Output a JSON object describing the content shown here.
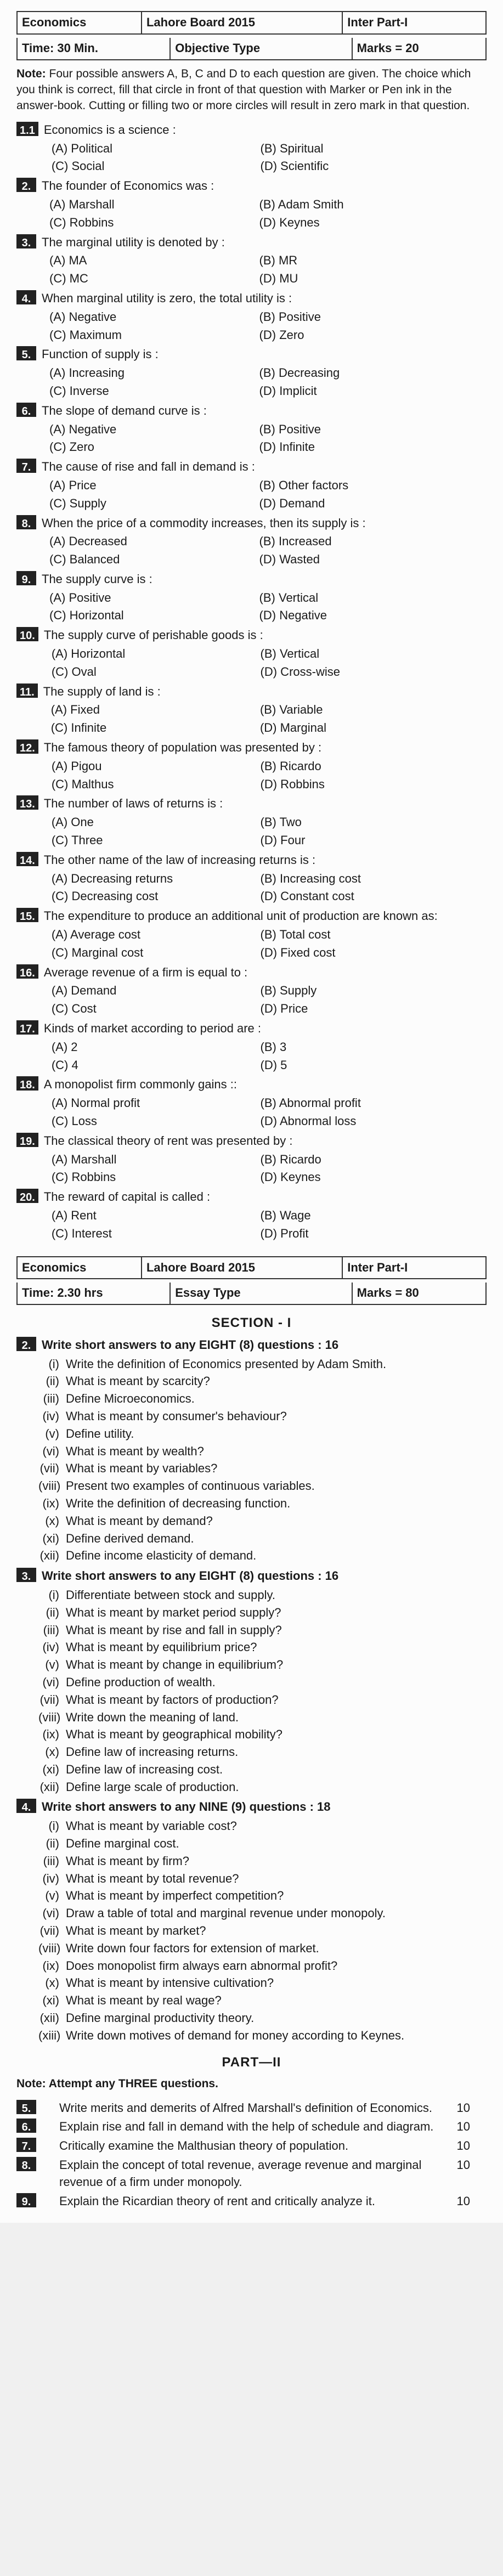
{
  "header1": {
    "subject": "Economics",
    "board": "Lahore Board 2015",
    "part": "Inter Part-I",
    "time": "Time: 30 Min.",
    "type": "Objective Type",
    "marks": "Marks = 20"
  },
  "note1": "Four possible answers A, B, C and D to each question are given. The choice which you think is correct, fill that circle in front of that question with Marker or Pen ink in the answer-book. Cutting or filling two or more circles will result in zero mark in that question.",
  "mcq": [
    {
      "n": "1.1",
      "s": "Economics is a science :",
      "o": [
        "(A) Political",
        "(B) Spiritual",
        "(C) Social",
        "(D) Scientific"
      ]
    },
    {
      "n": "2.",
      "s": "The founder of Economics was :",
      "o": [
        "(A) Marshall",
        "(B) Adam Smith",
        "(C) Robbins",
        "(D) Keynes"
      ]
    },
    {
      "n": "3.",
      "s": "The marginal utility is denoted by :",
      "o": [
        "(A) MA",
        "(B) MR",
        "(C) MC",
        "(D) MU"
      ]
    },
    {
      "n": "4.",
      "s": "When marginal utility is zero, the total utility is :",
      "o": [
        "(A) Negative",
        "(B) Positive",
        "(C) Maximum",
        "(D) Zero"
      ]
    },
    {
      "n": "5.",
      "s": "Function of supply is :",
      "o": [
        "(A) Increasing",
        "(B) Decreasing",
        "(C) Inverse",
        "(D) Implicit"
      ]
    },
    {
      "n": "6.",
      "s": "The slope of demand curve is :",
      "o": [
        "(A) Negative",
        "(B) Positive",
        "(C) Zero",
        "(D) Infinite"
      ]
    },
    {
      "n": "7.",
      "s": "The cause of rise and fall in demand is :",
      "o": [
        "(A) Price",
        "(B) Other factors",
        "(C) Supply",
        "(D) Demand"
      ]
    },
    {
      "n": "8.",
      "s": "When the price of a commodity increases, then its supply is :",
      "o": [
        "(A) Decreased",
        "(B) Increased",
        "(C) Balanced",
        "(D) Wasted"
      ]
    },
    {
      "n": "9.",
      "s": "The supply curve is :",
      "o": [
        "(A) Positive",
        "(B) Vertical",
        "(C) Horizontal",
        "(D) Negative"
      ]
    },
    {
      "n": "10.",
      "s": "The supply curve of perishable goods is :",
      "o": [
        "(A) Horizontal",
        "(B) Vertical",
        "(C) Oval",
        "(D) Cross-wise"
      ]
    },
    {
      "n": "11.",
      "s": "The supply of land is :",
      "o": [
        "(A) Fixed",
        "(B) Variable",
        "(C) Infinite",
        "(D) Marginal"
      ]
    },
    {
      "n": "12.",
      "s": "The famous theory of population was presented by :",
      "o": [
        "(A) Pigou",
        "(B) Ricardo",
        "(C) Malthus",
        "(D) Robbins"
      ]
    },
    {
      "n": "13.",
      "s": "The number of laws of returns is :",
      "o": [
        "(A) One",
        "(B) Two",
        "(C) Three",
        "(D) Four"
      ]
    },
    {
      "n": "14.",
      "s": "The other name of the law of increasing returns is :",
      "o": [
        "(A) Decreasing returns",
        "(B) Increasing cost",
        "(C) Decreasing cost",
        "(D) Constant cost"
      ]
    },
    {
      "n": "15.",
      "s": "The expenditure to produce an additional unit of production are known as:",
      "o": [
        "(A) Average cost",
        "(B) Total cost",
        "(C) Marginal cost",
        "(D) Fixed cost"
      ]
    },
    {
      "n": "16.",
      "s": "Average revenue of a firm is equal to :",
      "o": [
        "(A) Demand",
        "(B) Supply",
        "(C) Cost",
        "(D) Price"
      ]
    },
    {
      "n": "17.",
      "s": "Kinds of market according to period are :",
      "o": [
        "(A) 2",
        "(B) 3",
        "(C) 4",
        "(D) 5"
      ]
    },
    {
      "n": "18.",
      "s": "A monopolist firm commonly gains ::",
      "o": [
        "(A) Normal profit",
        "(B) Abnormal profit",
        "(C) Loss",
        "(D) Abnormal loss"
      ]
    },
    {
      "n": "19.",
      "s": "The classical theory of rent was presented by :",
      "o": [
        "(A) Marshall",
        "(B) Ricardo",
        "(C) Robbins",
        "(D) Keynes"
      ]
    },
    {
      "n": "20.",
      "s": "The reward of capital is called :",
      "o": [
        "(A) Rent",
        "(B) Wage",
        "(C) Interest",
        "(D) Profit"
      ]
    }
  ],
  "header2": {
    "subject": "Economics",
    "board": "Lahore Board 2015",
    "part": "Inter Part-I",
    "time": "Time: 2.30 hrs",
    "type": "Essay Type",
    "marks": "Marks = 80"
  },
  "section1_title": "SECTION - I",
  "essay": [
    {
      "n": "2.",
      "head": "Write short answers to any EIGHT (8) questions : 16",
      "subs": [
        {
          "r": "(i)",
          "t": "Write the definition of Economics presented by Adam Smith."
        },
        {
          "r": "(ii)",
          "t": "What is meant by scarcity?"
        },
        {
          "r": "(iii)",
          "t": "Define Microeconomics."
        },
        {
          "r": "(iv)",
          "t": "What is meant by consumer's behaviour?"
        },
        {
          "r": "(v)",
          "t": "Define utility."
        },
        {
          "r": "(vi)",
          "t": "What is meant by wealth?"
        },
        {
          "r": "(vii)",
          "t": "What is meant by variables?"
        },
        {
          "r": "(viii)",
          "t": "Present two examples of continuous variables."
        },
        {
          "r": "(ix)",
          "t": "Write the definition of decreasing function."
        },
        {
          "r": "(x)",
          "t": "What is meant by demand?"
        },
        {
          "r": "(xi)",
          "t": "Define derived demand."
        },
        {
          "r": "(xii)",
          "t": "Define income elasticity of demand."
        }
      ]
    },
    {
      "n": "3.",
      "head": "Write short answers to any EIGHT (8) questions : 16",
      "subs": [
        {
          "r": "(i)",
          "t": "Differentiate between stock and supply."
        },
        {
          "r": "(ii)",
          "t": "What is meant by market period supply?"
        },
        {
          "r": "(iii)",
          "t": "What is meant by rise and fall in supply?"
        },
        {
          "r": "(iv)",
          "t": "What is meant by equilibrium price?"
        },
        {
          "r": "(v)",
          "t": "What is meant by change in equilibrium?"
        },
        {
          "r": "(vi)",
          "t": "Define production of wealth."
        },
        {
          "r": "(vii)",
          "t": "What is meant by factors of production?"
        },
        {
          "r": "(viii)",
          "t": "Write down the meaning of land."
        },
        {
          "r": "(ix)",
          "t": "What is meant by geographical mobility?"
        },
        {
          "r": "(x)",
          "t": "Define law of increasing returns."
        },
        {
          "r": "(xi)",
          "t": "Define law of increasing cost."
        },
        {
          "r": "(xii)",
          "t": "Define large scale of production."
        }
      ]
    },
    {
      "n": "4.",
      "head": "Write short answers to any NINE (9) questions : 18",
      "subs": [
        {
          "r": "(i)",
          "t": "What is meant by variable cost?"
        },
        {
          "r": "(ii)",
          "t": "Define marginal cost."
        },
        {
          "r": "(iii)",
          "t": "What is meant by firm?"
        },
        {
          "r": "(iv)",
          "t": "What is meant by total revenue?"
        },
        {
          "r": "(v)",
          "t": "What is meant by imperfect competition?"
        },
        {
          "r": "(vi)",
          "t": "Draw a table of total and marginal revenue under monopoly."
        },
        {
          "r": "(vii)",
          "t": "What is meant by market?"
        },
        {
          "r": "(viii)",
          "t": "Write down four factors for extension of market."
        },
        {
          "r": "(ix)",
          "t": "Does monopolist firm always earn abnormal profit?"
        },
        {
          "r": "(x)",
          "t": "What is meant by intensive cultivation?"
        },
        {
          "r": "(xi)",
          "t": "What is meant by real wage?"
        },
        {
          "r": "(xii)",
          "t": "Define marginal productivity theory."
        },
        {
          "r": "(xiii)",
          "t": "Write down motives of demand for money according to Keynes."
        }
      ]
    }
  ],
  "part2_title": "PART—II",
  "part2_note": "Note: Attempt any THREE questions.",
  "part2": [
    {
      "n": "5.",
      "t": "Write merits and demerits of Alfred Marshall's definition of Economics.",
      "m": "10"
    },
    {
      "n": "6.",
      "t": "Explain rise and fall in demand with the help of schedule and diagram.",
      "m": "10"
    },
    {
      "n": "7.",
      "t": "Critically examine the Malthusian theory of population.",
      "m": "10"
    },
    {
      "n": "8.",
      "t": "Explain the concept of total revenue, average revenue and marginal revenue of a firm under monopoly.",
      "m": "10"
    },
    {
      "n": "9.",
      "t": "Explain the Ricardian theory of rent and critically analyze it.",
      "m": "10"
    }
  ]
}
